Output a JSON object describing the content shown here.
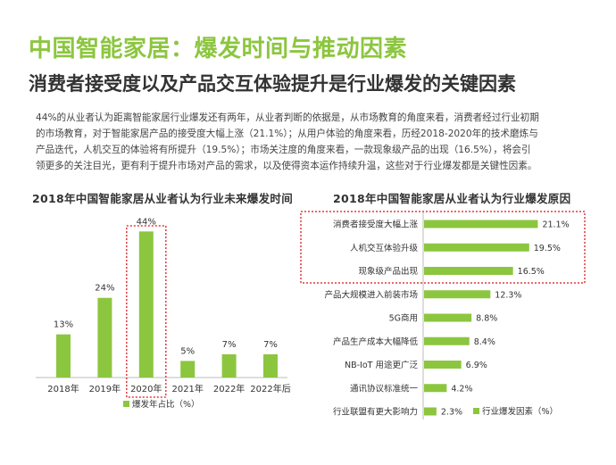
{
  "page": {
    "title": "中国智能家居：爆发时间与推动因素",
    "subtitle": "消费者接受度以及产品交互体验提升是行业爆发的关键因素",
    "paragraph_lines": [
      "44%的从业者认为距离智能家居行业爆发还有两年，从业者判断的依据是，从市场教育的角度来看，消费者经过行业初期",
      "的市场教育，对于智能家居产品的接受度大幅上涨（21.1%）；从用户体验的角度来看，历经2018-2020年的技术磨炼与",
      "产品迭代，人机交互的体验将有所提升（19.5%）；市场关注度的角度来看，一款现象级产品的出现（16.5%），将会引",
      "领更多的关注目光，更有利于提升市场对产品的需求，以及使得资本运作持续升温，这些对于行业爆发都是关键性因素。"
    ]
  },
  "colors": {
    "accent": "#8cc63f",
    "bar": "#8cc63f",
    "highlight_box": "#e0393e",
    "axis": "#bbbbbb",
    "text": "#333333"
  },
  "chart_data": [
    {
      "type": "bar",
      "title": "2018年中国智能家居从业者认为行业未来爆发时间",
      "categories": [
        "2018年",
        "2019年",
        "2020年",
        "2021年",
        "2022年",
        "2022年后"
      ],
      "series": [
        {
          "name": "爆发年占比（%）",
          "values": [
            13,
            24,
            44,
            5,
            7,
            7
          ]
        }
      ],
      "value_labels": [
        "13%",
        "24%",
        "44%",
        "5%",
        "7%",
        "7%"
      ],
      "ylim": [
        0,
        50
      ],
      "highlighted_category": "2020年",
      "grid": false,
      "legend": "bottom"
    },
    {
      "type": "bar",
      "orientation": "horizontal",
      "title": "2018年中国智能家居从业者认为行业爆发原因",
      "categories": [
        "消费者接受度大幅上涨",
        "人机交互体验升级",
        "现象级产品出现",
        "产品大规模进入前装市场",
        "5G商用",
        "产品生产成本大幅降低",
        "NB-IoT 用途更广泛",
        "通讯协议标准统一",
        "行业联盟有更大影响力"
      ],
      "series": [
        {
          "name": "行业爆发因素（%）",
          "values": [
            21.1,
            19.5,
            16.5,
            12.3,
            8.8,
            8.4,
            6.9,
            4.2,
            2.3
          ]
        }
      ],
      "value_labels": [
        "21.1%",
        "19.5%",
        "16.5%",
        "12.3%",
        "8.8%",
        "8.4%",
        "6.9%",
        "4.2%",
        "2.3%"
      ],
      "xlim": [
        0,
        25
      ],
      "highlighted_categories": [
        "消费者接受度大幅上涨",
        "人机交互体验升级",
        "现象级产品出现"
      ],
      "grid": false,
      "legend": "bottom-right"
    }
  ]
}
